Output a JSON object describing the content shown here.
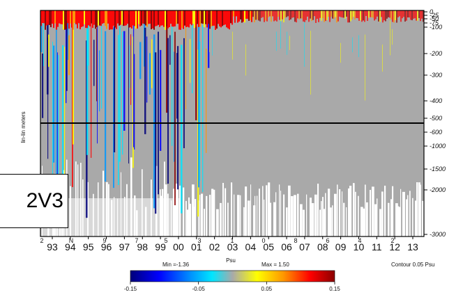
{
  "chart_data": {
    "type": "heatmap",
    "ylabel": "lin-lin meters",
    "xlabel": "",
    "x_tick_labels": [
      "93",
      "94",
      "95",
      "96",
      "97",
      "98",
      "99",
      "00",
      "01",
      "02",
      "03",
      "04",
      "05",
      "06",
      "07",
      "08",
      "09",
      "10",
      "11",
      "12",
      "13"
    ],
    "x_sub_labels": [
      "2",
      "N",
      "9",
      "7",
      "5",
      "3",
      "1",
      "0",
      "8",
      "6",
      "4",
      "2"
    ],
    "y_ticks_upper": [
      "0",
      "-25",
      "-50",
      "-75",
      "-100",
      "-200",
      "-300",
      "-400",
      "-500"
    ],
    "y_ticks_lower": [
      "-600",
      "-1000",
      "-1500",
      "-2000",
      "-3000"
    ],
    "upper_range_m": [
      0,
      -500
    ],
    "lower_range_m": [
      -500,
      -3000
    ],
    "colorbar": {
      "title": "Psu",
      "min_label": "Min =-1.36",
      "max_label": "Max = 1.50",
      "tick_labels": [
        "-0.15",
        "-0.05",
        "0.05",
        "0.15"
      ],
      "range": [
        -0.15,
        0.15
      ],
      "colors": [
        "#00007a",
        "#0000ff",
        "#0096ff",
        "#00e6ff",
        "#a9a9a9",
        "#ffff00",
        "#ff9600",
        "#ff0000",
        "#8b0000"
      ]
    },
    "contour_label": "Contour 0.05 Psu",
    "grid": false
  },
  "overlay_label": "2V3",
  "colors": {
    "background_field": "#a9a9a9",
    "divider": "#000000"
  }
}
